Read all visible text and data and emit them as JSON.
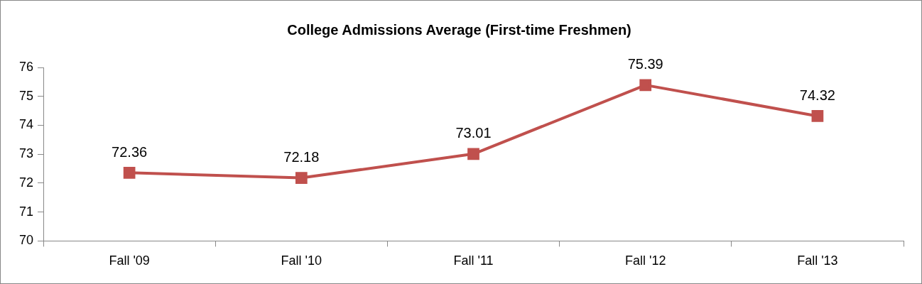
{
  "chart_data": {
    "type": "line",
    "title": "College Admissions Average (First-time Freshmen)",
    "categories": [
      "Fall '09",
      "Fall '10",
      "Fall '11",
      "Fall '12",
      "Fall '13"
    ],
    "series": [
      {
        "color": "#c0504d",
        "values": [
          72.36,
          72.18,
          73.01,
          75.39,
          74.32
        ]
      }
    ],
    "ylim": [
      70,
      76
    ],
    "yticks": [
      70,
      71,
      72,
      73,
      74,
      75,
      76
    ],
    "grid": false,
    "legend": false,
    "marker": "square",
    "line_style": "solid",
    "data_labels": true
  }
}
